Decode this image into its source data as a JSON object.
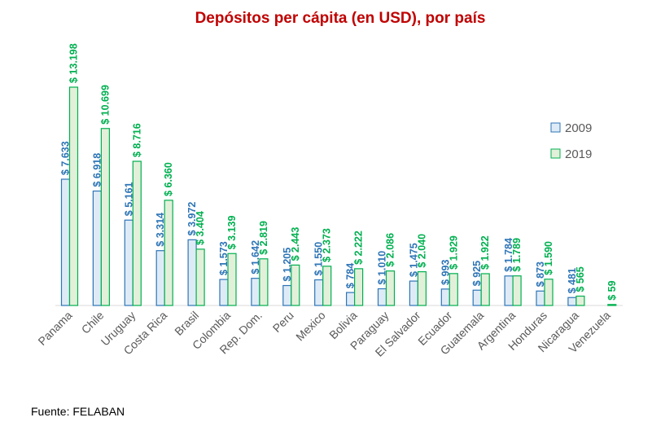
{
  "chart_data": {
    "type": "bar",
    "title": "Depósitos per cápita (en USD), por país",
    "categories": [
      "Panama",
      "Chile",
      "Uruguay",
      "Costa Rica",
      "Brasil",
      "Colombia",
      "Rep. Dom.",
      "Peru",
      "Mexico",
      "Bolivia",
      "Paraguay",
      "El Salvador",
      "Ecuador",
      "Guatemala",
      "Argentina",
      "Honduras",
      "Nicaragua",
      "Venezuela"
    ],
    "series": [
      {
        "name": "2009",
        "color": "#2e75b6",
        "fill": "#deebf7",
        "values": [
          7633,
          6918,
          5161,
          3314,
          3972,
          1573,
          1642,
          1205,
          1550,
          784,
          1010,
          1475,
          993,
          925,
          1784,
          873,
          481,
          0
        ],
        "labels": [
          "$ 7.633",
          "$ 6.918",
          "$ 5.161",
          "$ 3.314",
          "$ 3.972",
          "$ 1.573",
          "$ 1.642",
          "$ 1.205",
          "$ 1.550",
          "$ 784",
          "$ 1.010",
          "$ 1.475",
          "$ 993",
          "$ 925",
          "$ 1.784",
          "$ 873",
          "$ 481",
          ""
        ]
      },
      {
        "name": "2019",
        "color": "#00b050",
        "fill": "#e2f0d9",
        "values": [
          13198,
          10699,
          8716,
          6360,
          3404,
          3139,
          2819,
          2443,
          2373,
          2222,
          2086,
          2040,
          1929,
          1922,
          1789,
          1590,
          565,
          59
        ],
        "labels": [
          "$ 13.198",
          "$ 10.699",
          "$ 8.716",
          "$ 6.360",
          "$ 3.404",
          "$ 3.139",
          "$ 2.819",
          "$ 2.443",
          "$ 2.373",
          "$ 2.222",
          "$ 2.086",
          "$ 2.040",
          "$ 1.929",
          "$ 1.922",
          "$ 1.789",
          "$ 1.590",
          "$ 565",
          "$ 59"
        ]
      }
    ],
    "ylim": [
      0,
      13198
    ],
    "grid": false,
    "legend_position": "right",
    "source": "Fuente: FELABAN"
  }
}
